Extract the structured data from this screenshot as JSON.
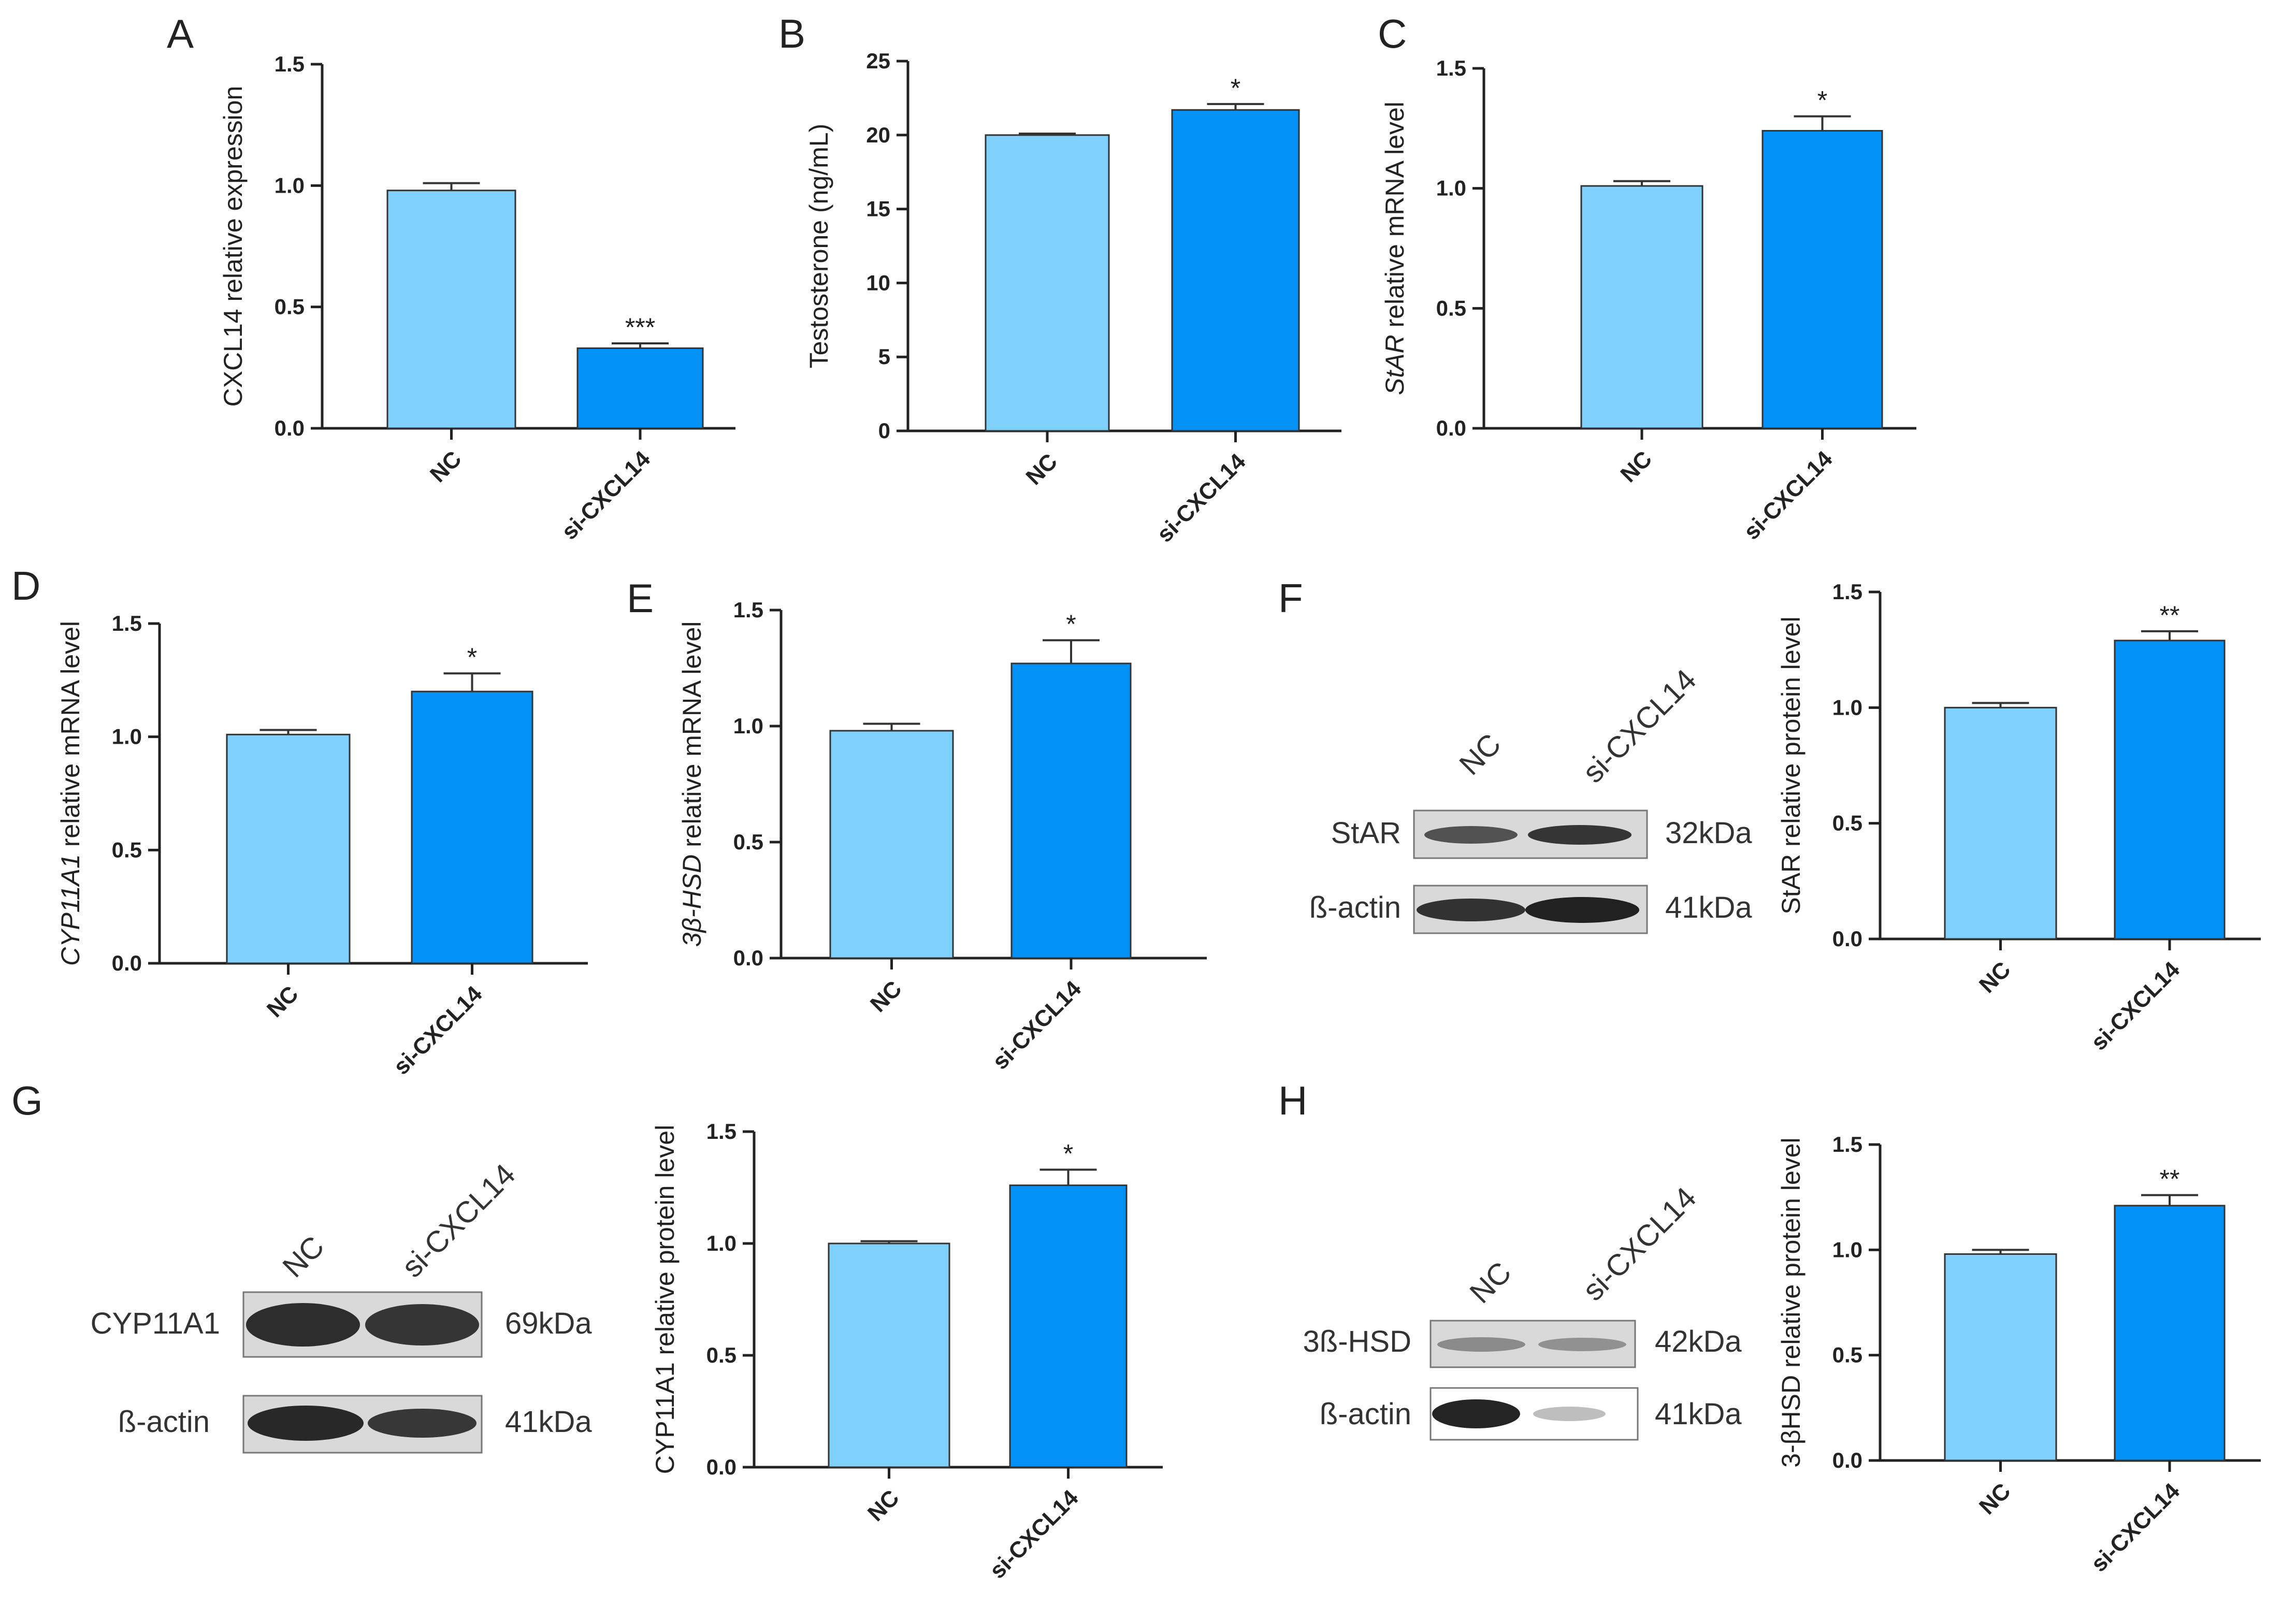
{
  "colors": {
    "nc": "#7fd1fb",
    "si": "#0391f6",
    "axis": "#222222"
  },
  "chart_data": [
    {
      "panel": "A",
      "type": "bar",
      "categories": [
        "NC",
        "si-CXCL14"
      ],
      "values": [
        0.98,
        0.33
      ],
      "errors": [
        0.03,
        0.02
      ],
      "sig": [
        "",
        "***"
      ],
      "ylabel": "CXCL14 relative expression",
      "ylim": [
        0,
        1.5
      ],
      "yticks": [
        "0.0",
        "0.5",
        "1.0",
        "1.5"
      ]
    },
    {
      "panel": "B",
      "type": "bar",
      "categories": [
        "NC",
        "si-CXCL14"
      ],
      "values": [
        20.0,
        21.7
      ],
      "errors": [
        0.1,
        0.4
      ],
      "sig": [
        "",
        "*"
      ],
      "ylabel": "Testosterone (ng/mL)",
      "ylim": [
        0,
        25
      ],
      "yticks": [
        "0",
        "5",
        "10",
        "15",
        "20",
        "25"
      ]
    },
    {
      "panel": "C",
      "type": "bar",
      "categories": [
        "NC",
        "si-CXCL14"
      ],
      "values": [
        1.01,
        1.24
      ],
      "errors": [
        0.02,
        0.06
      ],
      "sig": [
        "",
        "*"
      ],
      "ylabel_italic": "StAR",
      "ylabel": " relative mRNA level",
      "ylim": [
        0,
        1.5
      ],
      "yticks": [
        "0.0",
        "0.5",
        "1.0",
        "1.5"
      ]
    },
    {
      "panel": "D",
      "type": "bar",
      "categories": [
        "NC",
        "si-CXCL14"
      ],
      "values": [
        1.01,
        1.2
      ],
      "errors": [
        0.02,
        0.08
      ],
      "sig": [
        "",
        "*"
      ],
      "ylabel_italic": "CYP11A1",
      "ylabel": " relative mRNA level",
      "ylim": [
        0,
        1.5
      ],
      "yticks": [
        "0.0",
        "0.5",
        "1.0",
        "1.5"
      ]
    },
    {
      "panel": "E",
      "type": "bar",
      "categories": [
        "NC",
        "si-CXCL14"
      ],
      "values": [
        0.98,
        1.27
      ],
      "errors": [
        0.03,
        0.1
      ],
      "sig": [
        "",
        "*"
      ],
      "ylabel_italic": "3β-HSD",
      "ylabel": " relative mRNA level",
      "ylim": [
        0,
        1.5
      ],
      "yticks": [
        "0.0",
        "0.5",
        "1.0",
        "1.5"
      ]
    },
    {
      "panel": "F",
      "type": "bar",
      "categories": [
        "NC",
        "si-CXCL14"
      ],
      "values": [
        1.0,
        1.29
      ],
      "errors": [
        0.02,
        0.04
      ],
      "sig": [
        "",
        "**"
      ],
      "ylabel": "StAR relative protein level",
      "ylim": [
        0,
        1.5
      ],
      "yticks": [
        "0.0",
        "0.5",
        "1.0",
        "1.5"
      ]
    },
    {
      "panel": "G",
      "type": "bar",
      "categories": [
        "NC",
        "si-CXCL14"
      ],
      "values": [
        1.0,
        1.26
      ],
      "errors": [
        0.01,
        0.07
      ],
      "sig": [
        "",
        "*"
      ],
      "ylabel": "CYP11A1 relative protein level",
      "ylim": [
        0,
        1.5
      ],
      "yticks": [
        "0.0",
        "0.5",
        "1.0",
        "1.5"
      ]
    },
    {
      "panel": "H",
      "type": "bar",
      "categories": [
        "NC",
        "si-CXCL14"
      ],
      "values": [
        0.98,
        1.21
      ],
      "errors": [
        0.02,
        0.05
      ],
      "sig": [
        "",
        "**"
      ],
      "ylabel": "3-βHSD relative protein level",
      "ylim": [
        0,
        1.5
      ],
      "yticks": [
        "0.0",
        "0.5",
        "1.0",
        "1.5"
      ]
    }
  ],
  "blots": {
    "F": {
      "lanes": [
        "NC",
        "si-CXCL14"
      ],
      "rows": [
        {
          "protein": "StAR",
          "size": "32kDa"
        },
        {
          "protein": "ß-actin",
          "size": "41kDa"
        }
      ]
    },
    "G": {
      "lanes": [
        "NC",
        "si-CXCL14"
      ],
      "rows": [
        {
          "protein": "CYP11A1",
          "size": "69kDa"
        },
        {
          "protein": "ß-actin",
          "size": "41kDa"
        }
      ]
    },
    "H": {
      "lanes": [
        "NC",
        "si-CXCL14"
      ],
      "rows": [
        {
          "protein": "3ß-HSD",
          "size": "42kDa"
        },
        {
          "protein": "ß-actin",
          "size": "41kDa"
        }
      ]
    }
  }
}
